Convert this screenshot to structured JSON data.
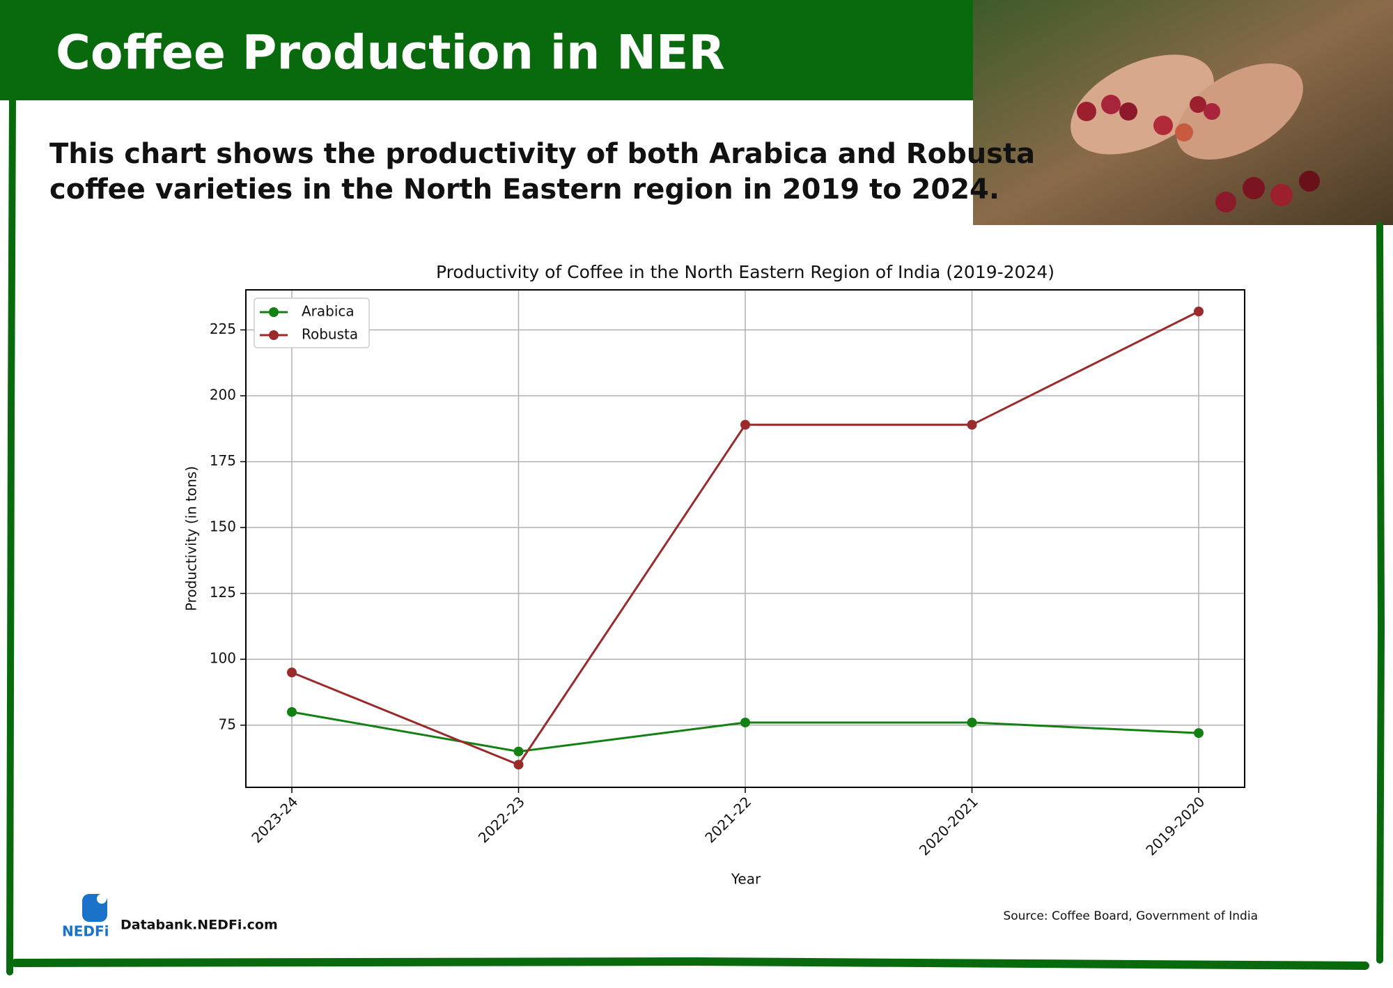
{
  "header": {
    "title": "Coffee Production  in NER",
    "subtitle": [
      "This chart shows the productivity of both Arabica and Robusta",
      "coffee varieties in the North Eastern region in 2019 to 2024."
    ]
  },
  "chart_data": {
    "type": "line",
    "title": "Productivity of Coffee in the North Eastern Region of India (2019-2024)",
    "x_label": "Year",
    "y_label": "Productivity (in tons)",
    "categories": [
      "2023-24",
      "2022-23",
      "2021-22",
      "2020-2021",
      "2019-2020"
    ],
    "series": [
      {
        "name": "Arabica",
        "color": "#138013",
        "values": [
          80,
          65,
          76,
          76,
          72
        ]
      },
      {
        "name": "Robusta",
        "color": "#9b2a2a",
        "values": [
          95,
          60,
          189,
          189,
          232
        ]
      }
    ],
    "ylim": [
      51.4,
      240.2
    ],
    "yticks": [
      75,
      100,
      125,
      150,
      175,
      200,
      225
    ],
    "grid": true,
    "legend": "upper-left"
  },
  "footer": {
    "logo": "NEDFi",
    "site": "Databank.NEDFi.com",
    "source": "Source: Coffee Board, Government of India"
  }
}
